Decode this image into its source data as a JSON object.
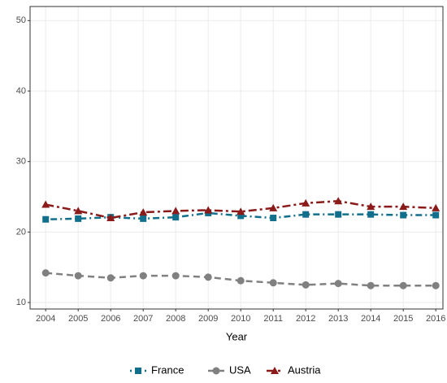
{
  "chart_data": {
    "type": "line",
    "xlabel": "Year",
    "x": [
      2004,
      2005,
      2006,
      2007,
      2008,
      2009,
      2010,
      2011,
      2012,
      2013,
      2014,
      2015,
      2016
    ],
    "series": [
      {
        "name": "France",
        "color": "#126f8c",
        "marker": "square",
        "dash": "dotdash",
        "values": [
          21.8,
          21.9,
          22.1,
          21.9,
          22.1,
          22.7,
          22.3,
          22.0,
          22.5,
          22.5,
          22.5,
          22.4,
          22.4
        ]
      },
      {
        "name": "USA",
        "color": "#808080",
        "marker": "circle",
        "dash": "dashed",
        "values": [
          14.2,
          13.8,
          13.5,
          13.8,
          13.8,
          13.6,
          13.1,
          12.8,
          12.5,
          12.7,
          12.4,
          12.4,
          12.4
        ]
      },
      {
        "name": "Austria",
        "color": "#8b1a1a",
        "marker": "triangle",
        "dash": "longdash",
        "values": [
          23.9,
          23.0,
          22.0,
          22.8,
          23.0,
          23.1,
          22.9,
          23.4,
          24.1,
          24.4,
          23.6,
          23.6,
          23.4
        ]
      }
    ],
    "xlim": [
      2003.52,
      2016.22
    ],
    "xticks": [
      2004,
      2005,
      2006,
      2007,
      2008,
      2009,
      2010,
      2011,
      2012,
      2013,
      2014,
      2015,
      2016
    ],
    "ylim": [
      9.08,
      52.0
    ],
    "yticks": [
      10,
      20,
      30,
      40,
      50
    ],
    "grid": true,
    "legend": "bottom"
  }
}
